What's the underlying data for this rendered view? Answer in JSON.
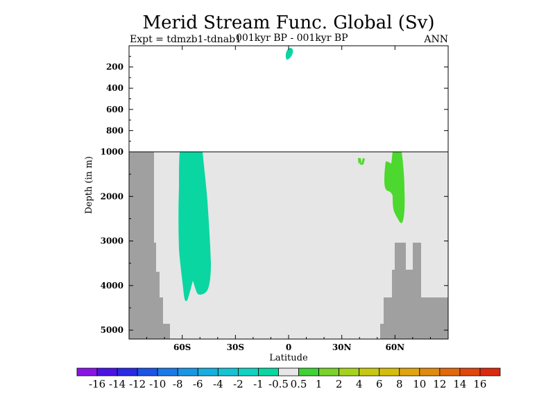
{
  "chart_data": {
    "type": "heatmap",
    "title": "Merid Stream Func. Global (Sv)",
    "subtitle_left": "Expt = tdmzb1-tdnab1",
    "subtitle_center": "001kyr BP - 001kyr BP",
    "subtitle_right": "ANN",
    "xlabel": "Latitude",
    "ylabel": "Depth (in m)",
    "xlim": [
      -90,
      90
    ],
    "x_ticks": [
      {
        "value": -60,
        "label": "60S"
      },
      {
        "value": -30,
        "label": "30S"
      },
      {
        "value": 0,
        "label": "0"
      },
      {
        "value": 30,
        "label": "30N"
      },
      {
        "value": 60,
        "label": "60N"
      }
    ],
    "upper_panel": {
      "depth_range": [
        0,
        1000
      ],
      "y_ticks": [
        200,
        400,
        600,
        800,
        1000
      ],
      "y_tick_labels": [
        "200",
        "400",
        "600",
        "800",
        "1000"
      ]
    },
    "lower_panel": {
      "depth_range": [
        1000,
        5200
      ],
      "y_ticks": [
        2000,
        3000,
        4000,
        5000
      ],
      "y_tick_labels": [
        "2000",
        "3000",
        "4000",
        "5000"
      ]
    },
    "colorbar": {
      "levels": [
        "-16",
        "-14",
        "-12",
        "-10",
        "-8",
        "-6",
        "-4",
        "-2",
        "-1",
        "-0.5",
        "0.5",
        "1",
        "2",
        "4",
        "6",
        "8",
        "10",
        "12",
        "14",
        "16"
      ],
      "colors": [
        "#8a14e6",
        "#4a14e6",
        "#2a2ae6",
        "#1a55e6",
        "#1a7ae6",
        "#1a96e6",
        "#18aee0",
        "#14c4d6",
        "#0fd2c2",
        "#0ad6a2",
        "#e6e6e6",
        "#3ed235",
        "#7ad22a",
        "#a6d21e",
        "#c6c812",
        "#d6bc0e",
        "#e0a50e",
        "#e08a0e",
        "#e0690e",
        "#e0460e",
        "#dc2a0e"
      ]
    },
    "regions": [
      {
        "name": "antarctic-negative-cell",
        "value_band": "-1 to -0.5",
        "lat_range": [
          -61,
          -50
        ],
        "depth_range": [
          1000,
          4400
        ]
      },
      {
        "name": "equatorial-surface-negative-cell",
        "value_band": "-1 to -0.5",
        "lat_range": [
          -1,
          2
        ],
        "depth_range": [
          70,
          120
        ]
      },
      {
        "name": "north-atlantic-positive-cell",
        "value_band": "0.5 to 1",
        "lat_range": [
          53,
          61
        ],
        "depth_range": [
          1000,
          2600
        ]
      },
      {
        "name": "small-positive-patch",
        "value_band": "0.5 to 1",
        "lat_range": [
          38,
          42
        ],
        "depth_range": [
          1100,
          1300
        ]
      }
    ],
    "colors": {
      "land": "#a0a0a0",
      "background_deep": "#e6e6e6",
      "background_upper": "#ffffff",
      "negative_fill": "#0ad6a2",
      "positive_fill": "#4cd82e"
    }
  }
}
